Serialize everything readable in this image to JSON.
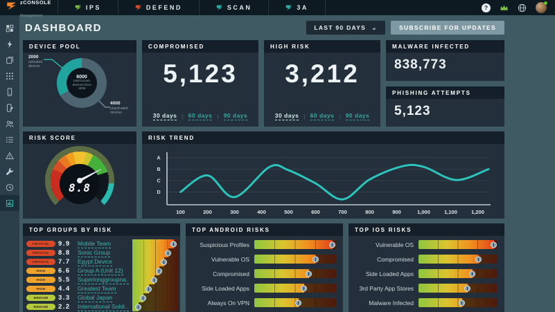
{
  "brand": {
    "name": "zCONSOLE",
    "subtitle": "Management",
    "logo_color": "#ef8228"
  },
  "nav": {
    "tabs": [
      {
        "label": "IPS",
        "icon_color": "#7cc242"
      },
      {
        "label": "DEFEND",
        "icon_color": "#e2502c"
      },
      {
        "label": "SCAN",
        "icon_color": "#2bb8b0"
      },
      {
        "label": "3A",
        "icon_color": "#2bb8b0"
      }
    ]
  },
  "topbar": {
    "help": "?",
    "status_color": "#58c322",
    "crown_color": "#7cc242"
  },
  "header": {
    "title": "DASHBOARD",
    "range_button": {
      "label": "LAST 90 DAYS",
      "chevron": "⌄"
    },
    "subscribe_button": "SUBSCRIBE FOR UPDATES"
  },
  "sidebar": {
    "items": [
      {
        "name": "dashboard-icon",
        "active": false
      },
      {
        "name": "bolt-icon",
        "active": false
      },
      {
        "name": "documents-icon",
        "active": false
      },
      {
        "name": "apps-grid-icon",
        "active": false
      },
      {
        "name": "device-icon",
        "active": false
      },
      {
        "name": "device-policy-icon",
        "active": false
      },
      {
        "name": "users-icon",
        "active": false
      },
      {
        "name": "list-icon",
        "active": false
      },
      {
        "name": "alerts-icon",
        "active": false
      },
      {
        "name": "tools-icon",
        "active": false
      },
      {
        "name": "history-icon",
        "active": false
      },
      {
        "name": "reports-icon",
        "active": true
      }
    ]
  },
  "cards": {
    "device_pool": {
      "title": "DEVICE POOL",
      "center_value": "6000",
      "center_caption": "total known devices from UEM",
      "activated": {
        "value": "2000",
        "caption": "activated devices",
        "pct": 33.3,
        "color": "#21a49e"
      },
      "unactivated": {
        "value": "4000",
        "caption": "unactivated devices",
        "pct": 66.7,
        "color": "#4c6570"
      }
    },
    "compromised": {
      "title": "COMPROMISED",
      "value": "5,123",
      "links": [
        "30 days",
        "60 days",
        "90 days"
      ],
      "active_link": 0
    },
    "high_risk": {
      "title": "HIGH RISK",
      "value": "3,212",
      "links": [
        "30 days",
        "60 days",
        "90 days"
      ],
      "active_link": 0
    },
    "malware_infected": {
      "title": "MALWARE INFECTED",
      "value": "838,773"
    },
    "phishing_attempts": {
      "title": "PHISHING ATTEMPTS",
      "value": "5,123"
    },
    "risk_score": {
      "title": "RISK SCORE",
      "value": "8.8",
      "scale_ticks": [
        "0",
        "1",
        "2",
        "3",
        "4",
        "5",
        "6",
        "7",
        "8",
        "9",
        "10"
      ]
    },
    "risk_trend": {
      "title": "RISK TREND"
    },
    "top_groups": {
      "title": "TOP GROUPS BY RISK",
      "severity_colors": {
        "CRITICAL": "#d8492a",
        "HIGH": "#efa32b",
        "MEDIUM": "#b3ca3b"
      },
      "rows": [
        {
          "severity": "CRITICAL",
          "score": "9.9",
          "name": "Mobile Team",
          "bar_pct": 90
        },
        {
          "severity": "CRITICAL",
          "score": "8.8",
          "name": "Sonic Group",
          "bar_pct": 78
        },
        {
          "severity": "CRITICAL",
          "score": "7.7",
          "name": "Egypt Device",
          "bar_pct": 68
        },
        {
          "severity": "HIGH",
          "score": "6.6",
          "name": "Group A (Unit 12)",
          "bar_pct": 58
        },
        {
          "severity": "HIGH",
          "score": "5.5",
          "name": "Superlonggroupna…",
          "bar_pct": 48
        },
        {
          "severity": "HIGH",
          "score": "4.4",
          "name": "Greatest Team",
          "bar_pct": 36
        },
        {
          "severity": "MEDIUM",
          "score": "3.3",
          "name": "Global Japan",
          "bar_pct": 24
        },
        {
          "severity": "MEDIUM",
          "score": "2.2",
          "name": "International Soldi…",
          "bar_pct": 14
        }
      ]
    },
    "top_android": {
      "title": "TOP ANDROID RISKS",
      "rows": [
        {
          "label": "Suspicious Profiles",
          "bar_pct": 96
        },
        {
          "label": "Vulnerable OS",
          "bar_pct": 75
        },
        {
          "label": "Compromised",
          "bar_pct": 67
        },
        {
          "label": "Side Loaded Apps",
          "bar_pct": 61
        },
        {
          "label": "Always On VPN",
          "bar_pct": 54
        }
      ]
    },
    "top_ios": {
      "title": "TOP IOS RISKS",
      "rows": [
        {
          "label": "Vulnerable OS",
          "bar_pct": 96
        },
        {
          "label": "Compromised",
          "bar_pct": 76
        },
        {
          "label": "Side Loaded Apps",
          "bar_pct": 68
        },
        {
          "label": "3rd Party App Stores",
          "bar_pct": 62
        },
        {
          "label": "Malware Infected",
          "bar_pct": 55
        }
      ]
    }
  },
  "chart_data": [
    {
      "type": "pie",
      "title": "DEVICE POOL",
      "labels": [
        "activated devices",
        "unactivated devices"
      ],
      "values": [
        2000,
        4000
      ],
      "colors": [
        "#21a49e",
        "#4c6570"
      ],
      "center_label": "6000 total known devices from UEM"
    },
    {
      "type": "gauge",
      "title": "RISK SCORE",
      "value": 8.8,
      "min": 0,
      "max": 10
    },
    {
      "type": "line",
      "title": "RISK TREND",
      "line_color": "#2cc4bc",
      "x": [
        100,
        200,
        300,
        430,
        500,
        600,
        700,
        800,
        920,
        1000,
        1120,
        1240
      ],
      "y_level": [
        1.0,
        2.45,
        0.55,
        3.2,
        2.9,
        1.75,
        0.35,
        2.1,
        3.25,
        3.2,
        2.05,
        3.0
      ],
      "y_tick_labels": [
        "A",
        "B",
        "C",
        "D"
      ],
      "y_tick_levels": [
        4,
        3,
        2,
        1
      ],
      "x_tick_labels": [
        "100",
        "200",
        "300",
        "400",
        "500",
        "600",
        "700",
        "800",
        "900",
        "1,000",
        "1,100",
        "1,200"
      ],
      "x_tick_values": [
        100,
        200,
        300,
        400,
        500,
        600,
        700,
        800,
        900,
        1000,
        1100,
        1200
      ]
    },
    {
      "type": "bar",
      "title": "TOP GROUPS BY RISK",
      "max": 10,
      "categories": [
        "Mobile Team",
        "Sonic Group",
        "Egypt Device",
        "Group A (Unit 12)",
        "Superlonggroupna…",
        "Greatest Team",
        "Global Japan",
        "International Soldi…"
      ],
      "values": [
        9.9,
        8.8,
        7.7,
        6.6,
        5.5,
        4.4,
        3.3,
        2.2
      ]
    },
    {
      "type": "bar",
      "title": "TOP ANDROID RISKS",
      "categories": [
        "Suspicious Profiles",
        "Vulnerable OS",
        "Compromised",
        "Side Loaded Apps",
        "Always On VPN"
      ],
      "values_pct": [
        96,
        75,
        67,
        61,
        54
      ]
    },
    {
      "type": "bar",
      "title": "TOP IOS RISKS",
      "categories": [
        "Vulnerable OS",
        "Compromised",
        "Side Loaded Apps",
        "3rd Party App Stores",
        "Malware Infected"
      ],
      "values_pct": [
        96,
        76,
        68,
        62,
        55
      ]
    }
  ]
}
